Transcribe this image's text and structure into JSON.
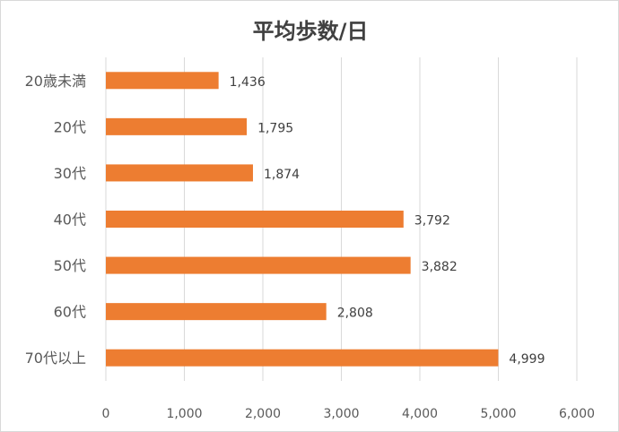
{
  "chart_data": {
    "type": "bar",
    "orientation": "horizontal",
    "title": "平均歩数/日",
    "categories": [
      "20歳未満",
      "20代",
      "30代",
      "40代",
      "50代",
      "60代",
      "70代以上"
    ],
    "values": [
      1436,
      1795,
      1874,
      3792,
      3882,
      2808,
      4999
    ],
    "data_labels": [
      "1,436",
      "1,795",
      "1,874",
      "3,792",
      "3,882",
      "2,808",
      "4,999"
    ],
    "xlim": [
      0,
      6000
    ],
    "x_ticks": [
      0,
      1000,
      2000,
      3000,
      4000,
      5000,
      6000
    ],
    "x_tick_labels": [
      "0",
      "1,000",
      "2,000",
      "3,000",
      "4,000",
      "5,000",
      "6,000"
    ],
    "xlabel": "",
    "ylabel": "",
    "grid": true,
    "legend": "none",
    "colors": {
      "bar": "#ed7d31",
      "grid": "#d9d9d9",
      "text": "#595959"
    }
  }
}
